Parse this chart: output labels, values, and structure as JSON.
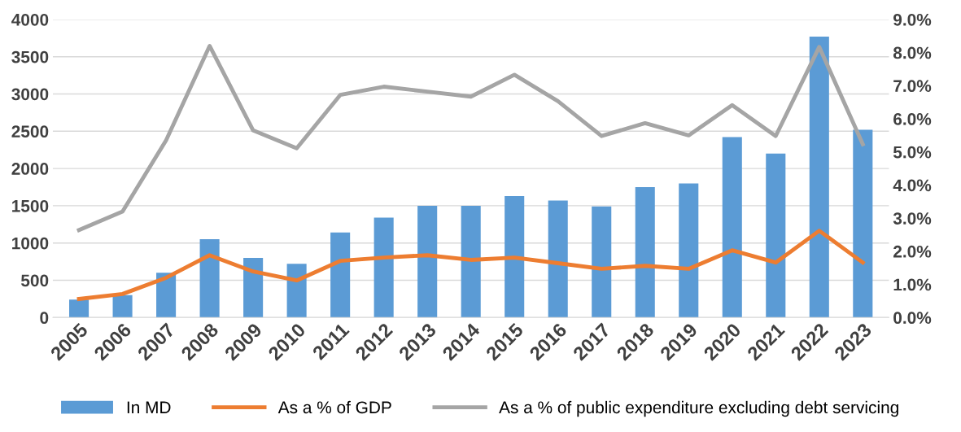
{
  "chart_data": {
    "type": "bar",
    "categories": [
      "2005",
      "2006",
      "2007",
      "2008",
      "2009",
      "2010",
      "2011",
      "2012",
      "2013",
      "2014",
      "2015",
      "2016",
      "2017",
      "2018",
      "2019",
      "2020",
      "2021",
      "2022",
      "2023"
    ],
    "series": [
      {
        "name": "In MD",
        "color": "#5b9bd5",
        "values": [
          240,
          300,
          600,
          1050,
          800,
          720,
          1140,
          1340,
          1500,
          1500,
          1630,
          1570,
          1490,
          1750,
          1800,
          2420,
          2200,
          3770,
          2520
        ]
      },
      {
        "name": "As a % of GDP",
        "color": "#ed7d31",
        "type": "line",
        "axis": "y2",
        "values": [
          0.56,
          0.71,
          1.2,
          1.88,
          1.39,
          1.12,
          1.71,
          1.81,
          1.88,
          1.74,
          1.81,
          1.64,
          1.47,
          1.56,
          1.47,
          2.03,
          1.66,
          2.62,
          1.66
        ]
      },
      {
        "name": "As a % of public expenditure excluding debt servicing",
        "color": "#a5a5a5",
        "type": "line",
        "axis": "y2",
        "values": [
          2.64,
          3.2,
          5.35,
          8.2,
          5.65,
          5.11,
          6.72,
          6.97,
          6.82,
          6.67,
          7.33,
          6.53,
          5.48,
          5.87,
          5.5,
          6.41,
          5.48,
          8.17,
          5.23
        ]
      }
    ],
    "ylim": [
      0,
      4000
    ],
    "yticks": [
      0,
      500,
      1000,
      1500,
      2000,
      2500,
      3000,
      3500,
      4000
    ],
    "y2lim": [
      0,
      9
    ],
    "y2ticks": [
      {
        "value": 0,
        "label": "0.0%"
      },
      {
        "value": 1,
        "label": "1.0%"
      },
      {
        "value": 2,
        "label": "2.0%"
      },
      {
        "value": 3,
        "label": "3.0%"
      },
      {
        "value": 4,
        "label": "4.0%"
      },
      {
        "value": 5,
        "label": "5.0%"
      },
      {
        "value": 6,
        "label": "6.0%"
      },
      {
        "value": 7,
        "label": "7.0%"
      },
      {
        "value": 8,
        "label": "8.0%"
      },
      {
        "value": 9,
        "label": "9.0%"
      }
    ],
    "grid": "y",
    "legend": "bottom",
    "marker": "none",
    "line_style": "solid"
  }
}
